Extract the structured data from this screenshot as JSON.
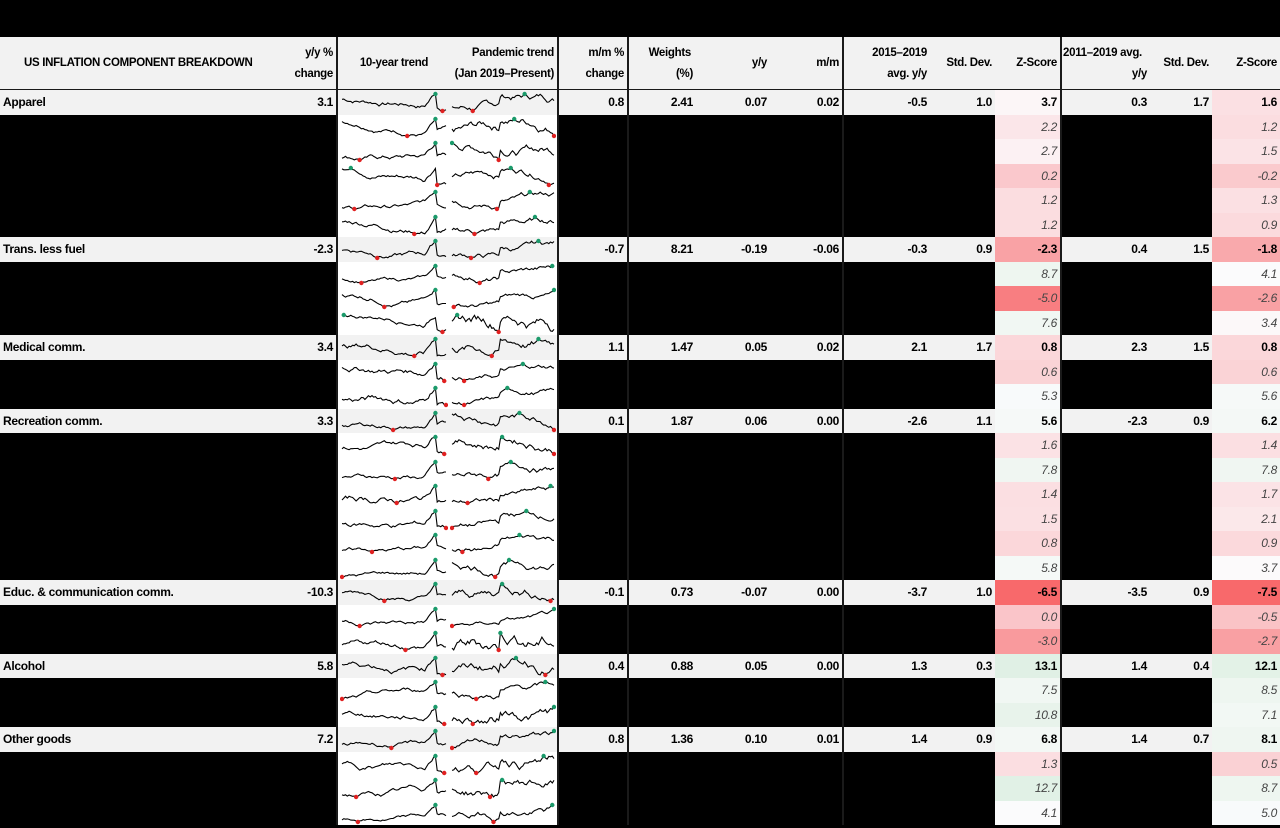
{
  "title": "US INFLATION COMPONENT BREAKDOWN",
  "headers": {
    "name": "US INFLATION COMPONENT BREAKDOWN",
    "yy_line1": "y/y %",
    "yy_line2": "change",
    "trend10": "10-year trend",
    "pandemic_line1": "Pandemic trend",
    "pandemic_line2": "(Jan 2019–Present)",
    "mm_line1": "m/m %",
    "mm_line2": "change",
    "weights_line1": "Weights",
    "weights_line2": "(%)",
    "contrib_yy": "y/y",
    "contrib_mm": "m/m",
    "avg1519_line1": "2015–2019",
    "avg1519_line2": "avg. y/y",
    "std1": "Std. Dev.",
    "z1": "Z-Score",
    "avg1119_line1": "2011–2019 avg.",
    "avg1119_line2": "y/y",
    "std2": "Std. Dev.",
    "z2": "Z-Score"
  },
  "colors": {
    "header_bg": "#f2f2f2",
    "main_row_bg": "#f2f2f2",
    "sub_row_bg": "#000000",
    "sparkline": "#000000",
    "sparkline_max_marker": "#1a9a6a",
    "sparkline_min_marker": "#e02020",
    "z_negative_strong": "#f8696b",
    "z_positive_strong": "#63be7b",
    "z_neutral": "#fcfcff"
  },
  "groups": [
    {
      "name": "Apparel",
      "yy": "3.1",
      "mm": "0.8",
      "weights": "2.41",
      "c_yy": "0.07",
      "c_mm": "0.02",
      "avg1519": "-0.5",
      "std1": "1.0",
      "z1": "3.7",
      "avg1119": "0.3",
      "std2": "1.7",
      "z2": "1.6",
      "z1_color": "#fcf6f7",
      "z2_color": "#fbe0e3",
      "subs": [
        {
          "z1": "2.2",
          "z2": "1.2",
          "z1_color": "#fbe6e9",
          "z2_color": "#fbdde0"
        },
        {
          "z1": "2.7",
          "z2": "1.5",
          "z1_color": "#fcf1f3",
          "z2_color": "#fbe3e6"
        },
        {
          "z1": "0.2",
          "z2": "-0.2",
          "z1_color": "#fac8cc",
          "z2_color": "#facacd"
        },
        {
          "z1": "1.2",
          "z2": "1.3",
          "z1_color": "#fbdde0",
          "z2_color": "#fbe0e3"
        },
        {
          "z1": "1.2",
          "z2": "0.9",
          "z1_color": "#fbdde0",
          "z2_color": "#fbdadd"
        }
      ]
    },
    {
      "name": "Trans. less fuel",
      "yy": "-2.3",
      "mm": "-0.7",
      "weights": "8.21",
      "c_yy": "-0.19",
      "c_mm": "-0.06",
      "avg1519": "-0.3",
      "std1": "0.9",
      "z1": "-2.3",
      "avg1119": "0.4",
      "std2": "1.5",
      "z2": "-1.8",
      "z1_color": "#f9a2a5",
      "z2_color": "#f9a9ac",
      "subs": [
        {
          "z1": "8.7",
          "z2": "4.1",
          "z1_color": "#eef6f0",
          "z2_color": "#fbfbfc"
        },
        {
          "z1": "-5.0",
          "z2": "-2.6",
          "z1_color": "#f87e81",
          "z2_color": "#f9a1a4"
        },
        {
          "z1": "7.6",
          "z2": "3.4",
          "z1_color": "#f1f7f3",
          "z2_color": "#fcf8f9"
        }
      ]
    },
    {
      "name": "Medical comm.",
      "yy": "3.4",
      "mm": "1.1",
      "weights": "1.47",
      "c_yy": "0.05",
      "c_mm": "0.02",
      "avg1519": "2.1",
      "std1": "1.7",
      "z1": "0.8",
      "avg1119": "2.3",
      "std2": "1.5",
      "z2": "0.8",
      "z1_color": "#fbd7da",
      "z2_color": "#fbd7da",
      "subs": [
        {
          "z1": "0.6",
          "z2": "0.6",
          "z1_color": "#fad3d6",
          "z2_color": "#fad3d6"
        },
        {
          "z1": "5.3",
          "z2": "5.6",
          "z1_color": "#f8fafb",
          "z2_color": "#f6f9f8"
        }
      ]
    },
    {
      "name": "Recreation comm.",
      "yy": "3.3",
      "mm": "0.1",
      "weights": "1.87",
      "c_yy": "0.06",
      "c_mm": "0.00",
      "avg1519": "-2.6",
      "std1": "1.1",
      "z1": "5.6",
      "avg1119": "-2.3",
      "std2": "0.9",
      "z2": "6.2",
      "z1_color": "#f6f9f8",
      "z2_color": "#f4f8f6",
      "subs": [
        {
          "z1": "1.6",
          "z2": "1.4",
          "z1_color": "#fbe2e5",
          "z2_color": "#fbdfe2"
        },
        {
          "z1": "7.8",
          "z2": "7.8",
          "z1_color": "#f0f6f2",
          "z2_color": "#f0f6f2"
        },
        {
          "z1": "1.4",
          "z2": "1.7",
          "z1_color": "#fbdfe2",
          "z2_color": "#fbe3e6"
        },
        {
          "z1": "1.5",
          "z2": "2.1",
          "z1_color": "#fbe0e3",
          "z2_color": "#fbe8ea"
        },
        {
          "z1": "0.8",
          "z2": "0.9",
          "z1_color": "#fbd7da",
          "z2_color": "#fbd9dc"
        },
        {
          "z1": "5.8",
          "z2": "3.7",
          "z1_color": "#f5f9f7",
          "z2_color": "#fcfafb"
        }
      ]
    },
    {
      "name": "Educ. & communication comm.",
      "yy": "-10.3",
      "mm": "-0.1",
      "weights": "0.73",
      "c_yy": "-0.07",
      "c_mm": "0.00",
      "avg1519": "-3.7",
      "std1": "1.0",
      "z1": "-6.5",
      "avg1119": "-3.5",
      "std2": "0.9",
      "z2": "-7.5",
      "z1_color": "#f8696b",
      "z2_color": "#f8696b",
      "subs": [
        {
          "z1": "0.0",
          "z2": "-0.5",
          "z1_color": "#fac5c9",
          "z2_color": "#fac3c6"
        },
        {
          "z1": "-3.0",
          "z2": "-2.7",
          "z1_color": "#f99a9d",
          "z2_color": "#f9a0a3"
        }
      ]
    },
    {
      "name": "Alcohol",
      "yy": "5.8",
      "mm": "0.4",
      "weights": "0.88",
      "c_yy": "0.05",
      "c_mm": "0.00",
      "avg1519": "1.3",
      "std1": "0.3",
      "z1": "13.1",
      "avg1119": "1.4",
      "std2": "0.4",
      "z2": "12.1",
      "z1_color": "#e0f0e5",
      "z2_color": "#e3f2e7",
      "subs": [
        {
          "z1": "7.5",
          "z2": "8.5",
          "z1_color": "#f1f7f3",
          "z2_color": "#eef6f0"
        },
        {
          "z1": "10.8",
          "z2": "7.1",
          "z1_color": "#e8f3eb",
          "z2_color": "#f2f8f4"
        }
      ]
    },
    {
      "name": "Other goods",
      "yy": "7.2",
      "mm": "0.8",
      "weights": "1.36",
      "c_yy": "0.10",
      "c_mm": "0.01",
      "avg1519": "1.4",
      "std1": "0.9",
      "z1": "6.8",
      "avg1119": "1.4",
      "std2": "0.7",
      "z2": "8.1",
      "z1_color": "#f3f8f5",
      "z2_color": "#eff6f1",
      "subs": [
        {
          "z1": "1.3",
          "z2": "0.5",
          "z1_color": "#fbdee1",
          "z2_color": "#fad1d4"
        },
        {
          "z1": "12.7",
          "z2": "8.7",
          "z1_color": "#e1f1e6",
          "z2_color": "#eef6f0"
        },
        {
          "z1": "4.1",
          "z2": "5.0",
          "z1_color": "#fbfbfc",
          "z2_color": "#f8fafb"
        }
      ]
    }
  ],
  "chart_data": {
    "type": "table",
    "title": "US INFLATION COMPONENT BREAKDOWN",
    "columns": [
      "Component",
      "y/y % change",
      "10-year trend",
      "Pandemic trend (Jan 2019–Present)",
      "m/m % change",
      "Weights (%)",
      "y/y",
      "m/m",
      "2015–2019 avg. y/y",
      "Std. Dev.",
      "Z-Score",
      "2011–2019 avg. y/y",
      "Std. Dev.",
      "Z-Score"
    ],
    "rows": [
      [
        "Apparel",
        3.1,
        "sparkline",
        "sparkline",
        0.8,
        2.41,
        0.07,
        0.02,
        -0.5,
        1.0,
        3.7,
        0.3,
        1.7,
        1.6
      ],
      [
        "Trans. less fuel",
        -2.3,
        "sparkline",
        "sparkline",
        -0.7,
        8.21,
        -0.19,
        -0.06,
        -0.3,
        0.9,
        -2.3,
        0.4,
        1.5,
        -1.8
      ],
      [
        "Medical comm.",
        3.4,
        "sparkline",
        "sparkline",
        1.1,
        1.47,
        0.05,
        0.02,
        2.1,
        1.7,
        0.8,
        2.3,
        1.5,
        0.8
      ],
      [
        "Recreation comm.",
        3.3,
        "sparkline",
        "sparkline",
        0.1,
        1.87,
        0.06,
        0.0,
        -2.6,
        1.1,
        5.6,
        -2.3,
        0.9,
        6.2
      ],
      [
        "Educ. & communication comm.",
        -10.3,
        "sparkline",
        "sparkline",
        -0.1,
        0.73,
        -0.07,
        0.0,
        -3.7,
        1.0,
        -6.5,
        -3.5,
        0.9,
        -7.5
      ],
      [
        "Alcohol",
        5.8,
        "sparkline",
        "sparkline",
        0.4,
        0.88,
        0.05,
        0.0,
        1.3,
        0.3,
        13.1,
        1.4,
        0.4,
        12.1
      ],
      [
        "Other goods",
        7.2,
        "sparkline",
        "sparkline",
        0.8,
        1.36,
        0.1,
        0.01,
        1.4,
        0.9,
        6.8,
        1.4,
        0.7,
        8.1
      ]
    ],
    "sub_rows_z_scores": {
      "Apparel": {
        "z1": [
          2.2,
          2.7,
          0.2,
          1.2,
          1.2
        ],
        "z2": [
          1.2,
          1.5,
          -0.2,
          1.3,
          0.9
        ]
      },
      "Trans. less fuel": {
        "z1": [
          8.7,
          -5.0,
          7.6
        ],
        "z2": [
          4.1,
          -2.6,
          3.4
        ]
      },
      "Medical comm.": {
        "z1": [
          0.6,
          5.3
        ],
        "z2": [
          0.6,
          5.6
        ]
      },
      "Recreation comm.": {
        "z1": [
          1.6,
          7.8,
          1.4,
          1.5,
          0.8,
          5.8
        ],
        "z2": [
          1.4,
          7.8,
          1.7,
          2.1,
          0.9,
          3.7
        ]
      },
      "Educ. & communication comm.": {
        "z1": [
          0.0,
          -3.0
        ],
        "z2": [
          -0.5,
          -2.7
        ]
      },
      "Alcohol": {
        "z1": [
          7.5,
          10.8
        ],
        "z2": [
          8.5,
          7.1
        ]
      },
      "Other goods": {
        "z1": [
          1.3,
          12.7,
          4.1
        ],
        "z2": [
          0.5,
          8.7,
          5.0
        ]
      }
    },
    "color_scale": "red (negative z) → white → green (high positive z)"
  }
}
